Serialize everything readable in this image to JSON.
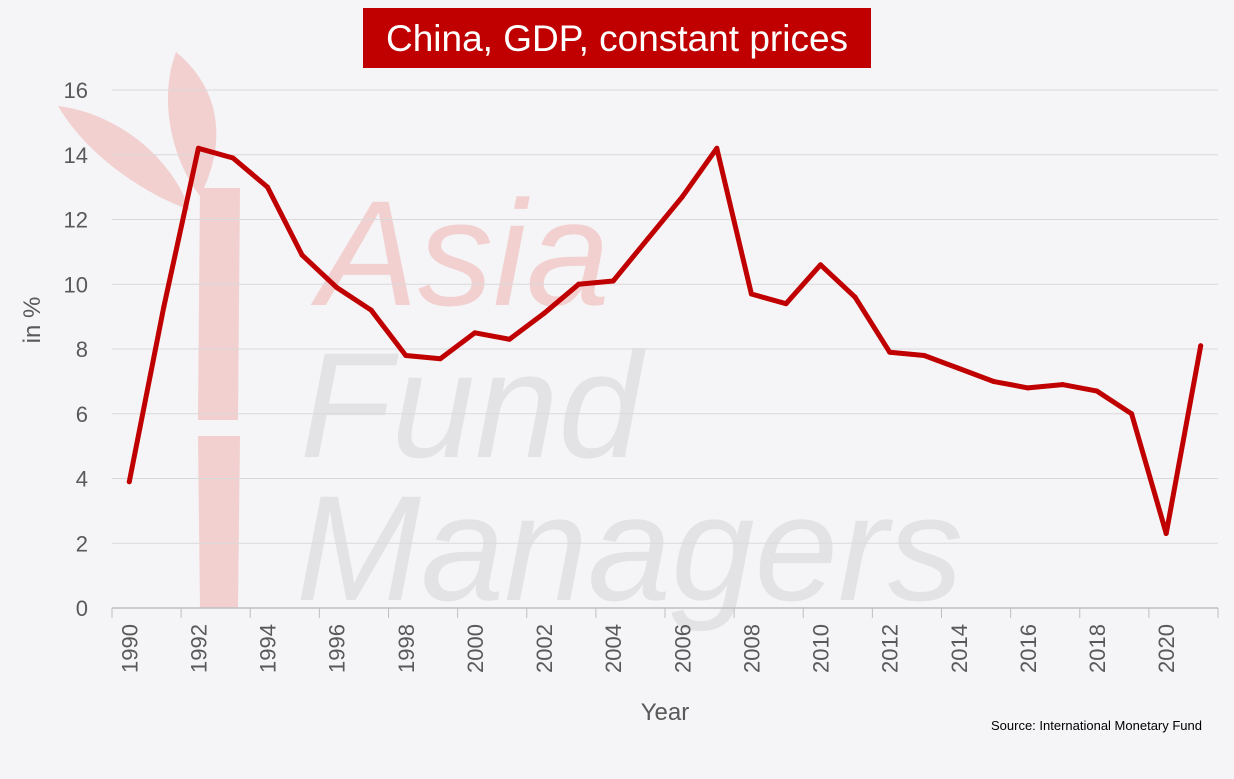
{
  "chart_data": {
    "type": "line",
    "title": "China, GDP, constant prices",
    "xlabel": "Year",
    "ylabel": "in %",
    "source": "Source: International Monetary Fund",
    "watermark": [
      "Asia",
      "Fund",
      "Managers"
    ],
    "ylim": [
      0,
      16
    ],
    "yticks": [
      0,
      2,
      4,
      6,
      8,
      10,
      12,
      14,
      16
    ],
    "xlim": [
      1989.5,
      2021.5
    ],
    "xticks": [
      1990,
      1992,
      1994,
      1996,
      1998,
      2000,
      2002,
      2004,
      2006,
      2008,
      2010,
      2012,
      2014,
      2016,
      2018,
      2020
    ],
    "grid": true,
    "legend": "none",
    "series": [
      {
        "color": "#c00000",
        "x": [
          1990,
          1991,
          1992,
          1993,
          1994,
          1995,
          1996,
          1997,
          1998,
          1999,
          2000,
          2001,
          2002,
          2003,
          2004,
          2005,
          2006,
          2007,
          2008,
          2009,
          2010,
          2011,
          2012,
          2013,
          2014,
          2015,
          2016,
          2017,
          2018,
          2019,
          2020,
          2021
        ],
        "values": [
          3.9,
          9.3,
          14.2,
          13.9,
          13.0,
          10.9,
          9.9,
          9.2,
          7.8,
          7.7,
          8.5,
          8.3,
          9.1,
          10.0,
          10.1,
          11.4,
          12.7,
          14.2,
          9.7,
          9.4,
          10.6,
          9.6,
          7.9,
          7.8,
          7.4,
          7.0,
          6.8,
          6.9,
          6.7,
          6.0,
          2.3,
          8.1
        ]
      }
    ]
  },
  "colors": {
    "line": "#c00000",
    "title_bg": "#c00000",
    "plot_bg": "#f5f4f7",
    "grid": "#d9d9d9",
    "watermark_red": "#f2d0d0",
    "watermark_gray": "#e3e3e6"
  }
}
